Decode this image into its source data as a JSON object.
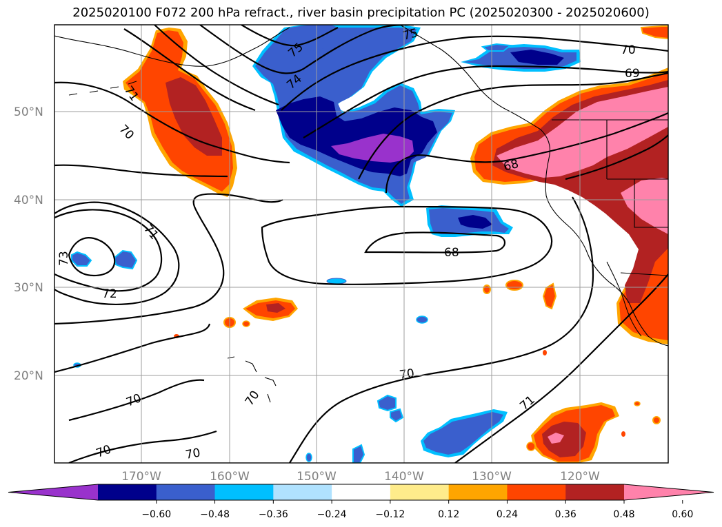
{
  "title": "2025020100 F072 200 hPa refract., river basin precipitation PC (2025020300 - 2025020600)",
  "lat_labels": [
    "50°N",
    "40°N",
    "30°N",
    "20°N"
  ],
  "lon_labels": [
    "170°W",
    "160°W",
    "150°W",
    "140°W",
    "130°W",
    "120°W"
  ],
  "contour_labels": [
    "75",
    "75",
    "74",
    "71",
    "70",
    "70",
    "69",
    "68",
    "71",
    "68",
    "73",
    "72",
    "70",
    "70",
    "70",
    "70",
    "70",
    "71"
  ],
  "colorbar": {
    "colors": [
      "#9932cc",
      "#00008b",
      "#3a5fcd",
      "#00bfff",
      "#b0e2ff",
      "#ffffff",
      "#ffec8b",
      "#ffa500",
      "#ff4500",
      "#b22222",
      "#ff82ab"
    ],
    "labels": [
      "−0.60",
      "−0.48",
      "−0.36",
      "−0.24",
      "−0.12",
      "0.12",
      "0.24",
      "0.36",
      "0.48",
      "0.60"
    ]
  },
  "colors": {
    "pos_light": "#ffec8b",
    "pos_orange": "#ffa500",
    "pos_red": "#ff4500",
    "pos_darkred": "#b22222",
    "pos_pink": "#ff82ab",
    "neg_lightblue": "#b0e2ff",
    "neg_cyan": "#00bfff",
    "neg_blue": "#3a5fcd",
    "neg_navy": "#00008b",
    "neg_purple": "#9932cc"
  }
}
